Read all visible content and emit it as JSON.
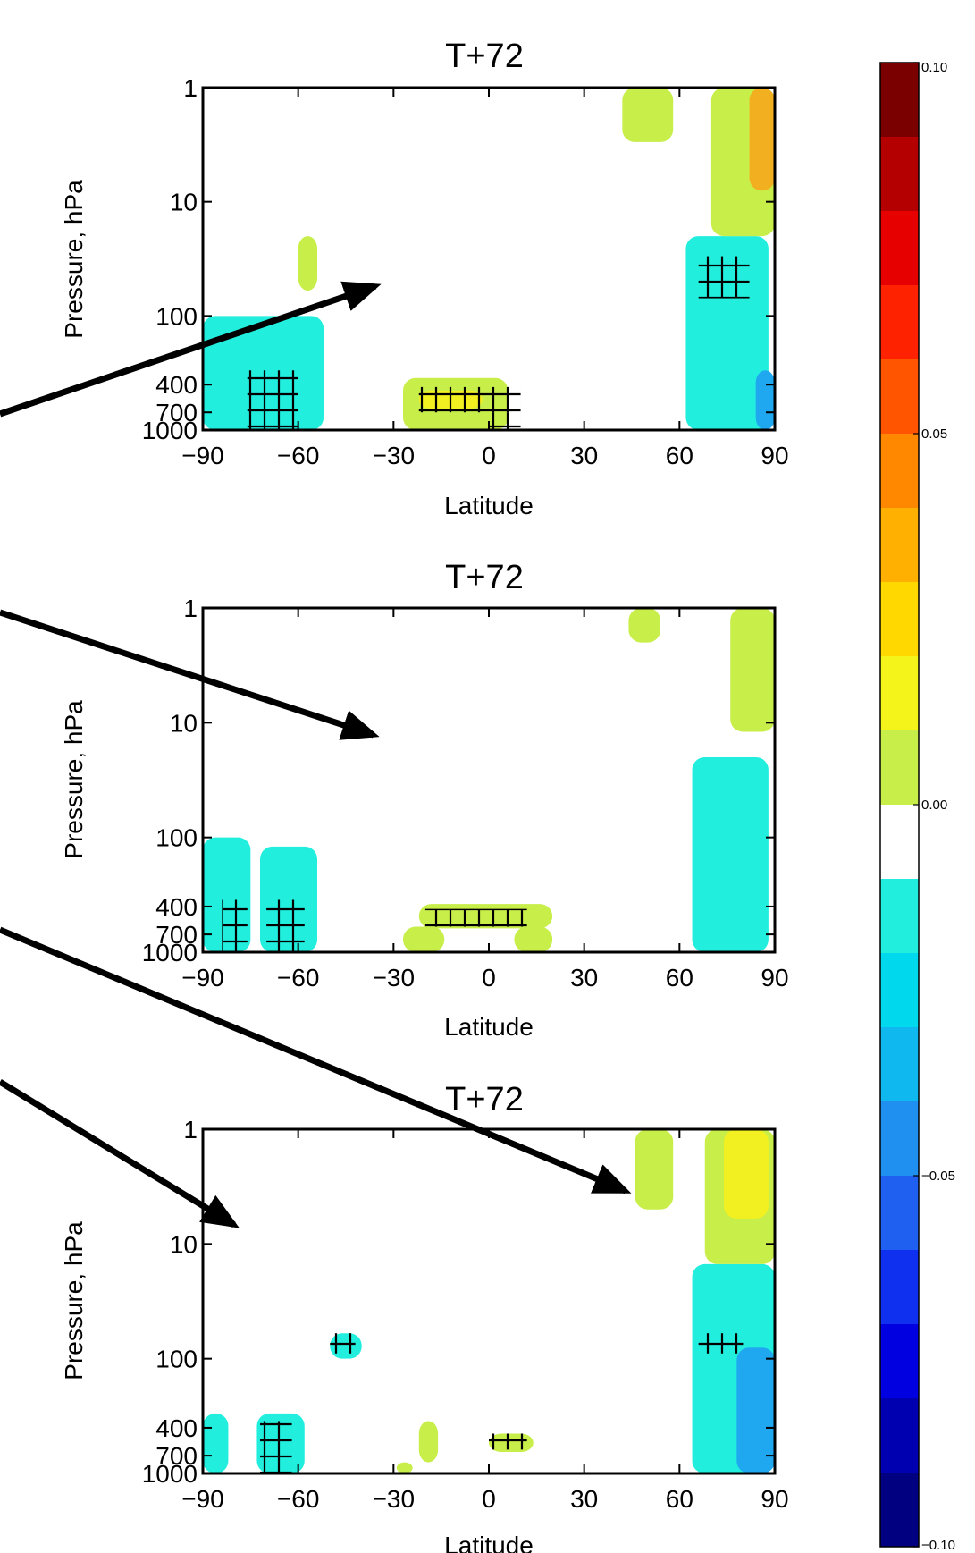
{
  "chart_data": [
    {
      "type": "heatmap",
      "title": "T+72",
      "xlabel": "Latitude",
      "ylabel": "Pressure, hPa",
      "x_ticks": [
        -90,
        -60,
        -30,
        0,
        30,
        60,
        90
      ],
      "y_ticks": [
        1,
        10,
        100,
        400,
        700,
        1000
      ],
      "xlim": [
        -90,
        90
      ],
      "ylim": [
        1,
        1000
      ],
      "regions": [
        {
          "level": 0.015,
          "lat": [
            -27,
            6
          ],
          "p": [
            350,
            1000
          ],
          "color": "#c8ee4a"
        },
        {
          "level": 0.035,
          "lat": [
            -22,
            -2
          ],
          "p": [
            450,
            650
          ],
          "color": "#f2f020"
        },
        {
          "level": -0.015,
          "lat": [
            -90,
            -52
          ],
          "p": [
            100,
            1000
          ],
          "color": "#22eedd"
        },
        {
          "level": -0.015,
          "lat": [
            62,
            88
          ],
          "p": [
            20,
            1000
          ],
          "color": "#22eedd"
        },
        {
          "level": -0.045,
          "lat": [
            84,
            90
          ],
          "p": [
            300,
            1000
          ],
          "color": "#1fa8f0"
        },
        {
          "level": 0.015,
          "lat": [
            70,
            90
          ],
          "p": [
            1,
            20
          ],
          "color": "#c8ee4a"
        },
        {
          "level": 0.035,
          "lat": [
            82,
            90
          ],
          "p": [
            1,
            8
          ],
          "color": "#f2b020"
        },
        {
          "level": 0.015,
          "lat": [
            -60,
            -54
          ],
          "p": [
            20,
            60
          ],
          "color": "#c8ee4a"
        },
        {
          "level": 0.015,
          "lat": [
            42,
            58
          ],
          "p": [
            1,
            3
          ],
          "color": "#c8ee4a"
        }
      ],
      "hatched": [
        {
          "lat": [
            -22,
            10
          ],
          "p": [
            420,
            700
          ]
        },
        {
          "lat": [
            0,
            10
          ],
          "p": [
            700,
            1000
          ]
        },
        {
          "lat": [
            -76,
            -60
          ],
          "p": [
            300,
            1000
          ]
        },
        {
          "lat": [
            66,
            82
          ],
          "p": [
            30,
            70
          ]
        }
      ]
    },
    {
      "type": "heatmap",
      "title": "T+72",
      "xlabel": "Latitude",
      "ylabel": "Pressure, hPa",
      "x_ticks": [
        -90,
        -60,
        -30,
        0,
        30,
        60,
        90
      ],
      "y_ticks": [
        1,
        10,
        100,
        400,
        700,
        1000
      ],
      "xlim": [
        -90,
        90
      ],
      "ylim": [
        1,
        1000
      ],
      "regions": [
        {
          "level": 0.015,
          "lat": [
            -22,
            20
          ],
          "p": [
            380,
            620
          ],
          "color": "#c8ee4a"
        },
        {
          "level": 0.015,
          "lat": [
            -27,
            -14
          ],
          "p": [
            600,
            1000
          ],
          "color": "#c8ee4a"
        },
        {
          "level": 0.015,
          "lat": [
            8,
            20
          ],
          "p": [
            600,
            1000
          ],
          "color": "#c8ee4a"
        },
        {
          "level": -0.015,
          "lat": [
            -90,
            -75
          ],
          "p": [
            100,
            1000
          ],
          "color": "#22eedd"
        },
        {
          "level": -0.015,
          "lat": [
            -72,
            -54
          ],
          "p": [
            120,
            1000
          ],
          "color": "#22eedd"
        },
        {
          "level": -0.015,
          "lat": [
            64,
            88
          ],
          "p": [
            20,
            1000
          ],
          "color": "#22eedd"
        },
        {
          "level": 0.015,
          "lat": [
            76,
            90
          ],
          "p": [
            1,
            12
          ],
          "color": "#c8ee4a"
        },
        {
          "level": 0.015,
          "lat": [
            44,
            54
          ],
          "p": [
            1,
            2
          ],
          "color": "#c8ee4a"
        }
      ],
      "hatched": [
        {
          "lat": [
            -20,
            12
          ],
          "p": [
            420,
            600
          ]
        },
        {
          "lat": [
            -84,
            -76
          ],
          "p": [
            350,
            1000
          ]
        },
        {
          "lat": [
            -70,
            -58
          ],
          "p": [
            350,
            1000
          ]
        }
      ]
    },
    {
      "type": "heatmap",
      "title": "T+72",
      "xlabel": "Latitude",
      "ylabel": "Pressure, hPa",
      "x_ticks": [
        -90,
        -60,
        -30,
        0,
        30,
        60,
        90
      ],
      "y_ticks": [
        1,
        10,
        100,
        400,
        700,
        1000
      ],
      "xlim": [
        -90,
        90
      ],
      "ylim": [
        1,
        1000
      ],
      "regions": [
        {
          "level": -0.015,
          "lat": [
            -73,
            -58
          ],
          "p": [
            300,
            1000
          ],
          "color": "#22eedd"
        },
        {
          "level": -0.015,
          "lat": [
            -90,
            -82
          ],
          "p": [
            300,
            1000
          ],
          "color": "#22eedd"
        },
        {
          "level": -0.015,
          "lat": [
            -50,
            -40
          ],
          "p": [
            60,
            100
          ],
          "color": "#22eedd"
        },
        {
          "level": -0.015,
          "lat": [
            64,
            90
          ],
          "p": [
            15,
            1000
          ],
          "color": "#22eedd"
        },
        {
          "level": -0.045,
          "lat": [
            78,
            90
          ],
          "p": [
            80,
            1000
          ],
          "color": "#1fa8f0"
        },
        {
          "level": 0.015,
          "lat": [
            68,
            90
          ],
          "p": [
            1,
            15
          ],
          "color": "#c8ee4a"
        },
        {
          "level": 0.035,
          "lat": [
            74,
            88
          ],
          "p": [
            1,
            6
          ],
          "color": "#f2f020"
        },
        {
          "level": 0.015,
          "lat": [
            -22,
            -16
          ],
          "p": [
            350,
            800
          ],
          "color": "#c8ee4a"
        },
        {
          "level": 0.015,
          "lat": [
            0,
            14
          ],
          "p": [
            450,
            650
          ],
          "color": "#c8ee4a"
        },
        {
          "level": 0.015,
          "lat": [
            -29,
            -24
          ],
          "p": [
            800,
            1000
          ],
          "color": "#c8ee4a"
        },
        {
          "level": 0.015,
          "lat": [
            46,
            58
          ],
          "p": [
            1,
            5
          ],
          "color": "#c8ee4a"
        }
      ],
      "hatched": [
        {
          "lat": [
            -72,
            -62
          ],
          "p": [
            350,
            1000
          ]
        },
        {
          "lat": [
            0,
            12
          ],
          "p": [
            450,
            620
          ]
        },
        {
          "lat": [
            -50,
            -42
          ],
          "p": [
            60,
            90
          ]
        },
        {
          "lat": [
            66,
            80
          ],
          "p": [
            60,
            90
          ]
        }
      ]
    }
  ],
  "colorbar": {
    "ticks": [
      "0.10",
      "0.05",
      "0.00",
      "−0.05",
      "−0.10"
    ],
    "colors": [
      "#7a0000",
      "#b40000",
      "#e60000",
      "#ff2200",
      "#ff5500",
      "#ff8800",
      "#ffb000",
      "#ffd800",
      "#f4f41a",
      "#c8ee4a",
      "#ffffff",
      "#22eedd",
      "#00d8ee",
      "#10b8f0",
      "#1f90f0",
      "#1f60f0",
      "#1030f0",
      "#0000e0",
      "#0000b0",
      "#000080"
    ]
  },
  "arrows": [
    {
      "from": [
        0,
        463
      ],
      "to": [
        420,
        320
      ]
    },
    {
      "from": [
        0,
        685
      ],
      "to": [
        418,
        822
      ]
    },
    {
      "from": [
        0,
        1040
      ],
      "to": [
        700,
        1332
      ]
    },
    {
      "from": [
        0,
        1210
      ],
      "to": [
        262,
        1370
      ]
    }
  ]
}
